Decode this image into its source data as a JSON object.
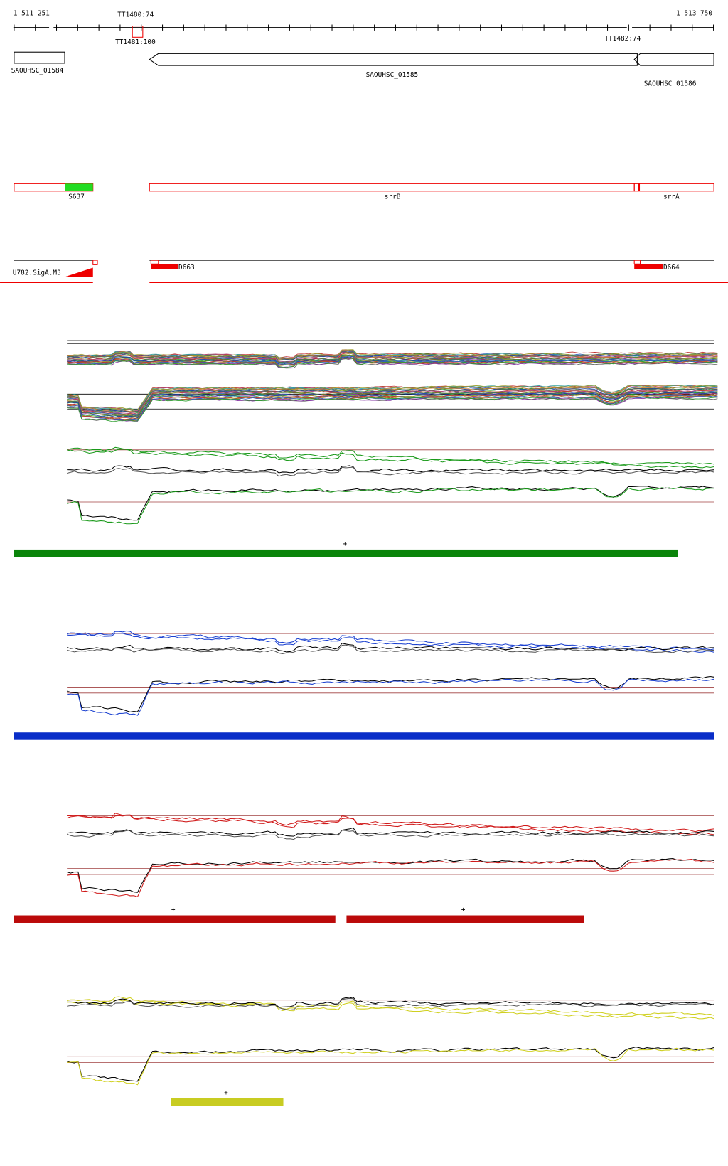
{
  "ruler": {
    "start": "1 511 251",
    "end": "1 513 750"
  },
  "terminators": [
    "TT1480:74",
    "TT1481:100",
    "TT1482:74"
  ],
  "genes": [
    "SAOUHSC_01584",
    "SAOUHSC_01585",
    "SAOUHSC_01586"
  ],
  "segments": [
    "S637",
    "srrB",
    "srrA"
  ],
  "promoters": [
    "U782.SigA.M3",
    "D663",
    "D664"
  ],
  "panels": [
    {
      "markers": [
        "+"
      ]
    },
    {
      "markers": [
        "+"
      ]
    },
    {
      "markers": [
        "+",
        "+"
      ]
    },
    {
      "markers": [
        "+"
      ]
    }
  ]
}
